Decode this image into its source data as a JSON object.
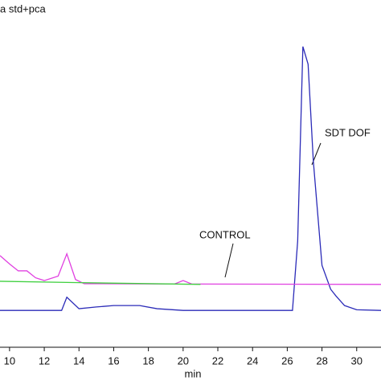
{
  "chart_data": {
    "type": "line",
    "title": "a std+pca",
    "x_label": "min",
    "annotations": [
      {
        "text": "SDT DOF"
      },
      {
        "text": "CONTROL"
      }
    ],
    "xlim": [
      9.45,
      31.4
    ],
    "xticks": [
      10,
      12,
      14,
      16,
      18,
      20,
      22,
      24,
      26,
      28,
      30
    ],
    "ylim": [
      0,
      100
    ],
    "series": [
      {
        "color": "#2b2bb8",
        "x": [
          9.45,
          13,
          13.3,
          14,
          15,
          16,
          17.5,
          18.5,
          20,
          26.3,
          26.6,
          26.9,
          27.2,
          27.5,
          28,
          28.5,
          28.8,
          29.3,
          30,
          31.4
        ],
        "values": [
          10.6,
          10.6,
          14.4,
          11.1,
          11.6,
          12.0,
          12.0,
          11.1,
          10.6,
          10.6,
          30.6,
          86.6,
          81.5,
          53.7,
          23.6,
          16.7,
          14.8,
          12.0,
          10.8,
          10.6
        ]
      },
      {
        "color": "#e040e0",
        "x": [
          9.45,
          10,
          10.5,
          11,
          11.5,
          12,
          12.8,
          13.3,
          13.8,
          14.3,
          19.5,
          20,
          20.5,
          31.4
        ],
        "values": [
          26.4,
          24,
          22,
          22,
          20,
          19.2,
          20.5,
          26.9,
          19.5,
          18.3,
          18.2,
          19.2,
          18.2,
          18.1
        ]
      },
      {
        "color": "#40d040",
        "x": [
          9.45,
          14,
          21
        ],
        "values": [
          19.0,
          18.6,
          18.1
        ]
      }
    ]
  }
}
